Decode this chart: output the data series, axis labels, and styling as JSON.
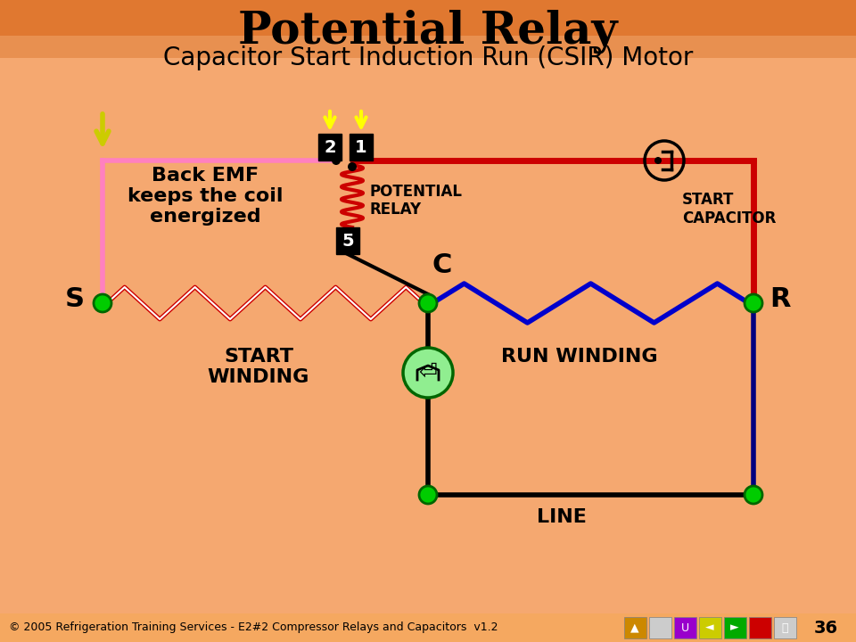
{
  "title": "Potential Relay",
  "subtitle": "Capacitor Start Induction Run (CSIR) Motor",
  "background_color": "#F5A86A",
  "title_color": "#000000",
  "footer_text": "© 2005 Refrigeration Training Services - E2#2 Compressor Relays and Capacitors  v1.2",
  "page_number": "36",
  "bg_gradient_top": "#E8834A",
  "bg_gradient_bottom": "#F5A86A"
}
